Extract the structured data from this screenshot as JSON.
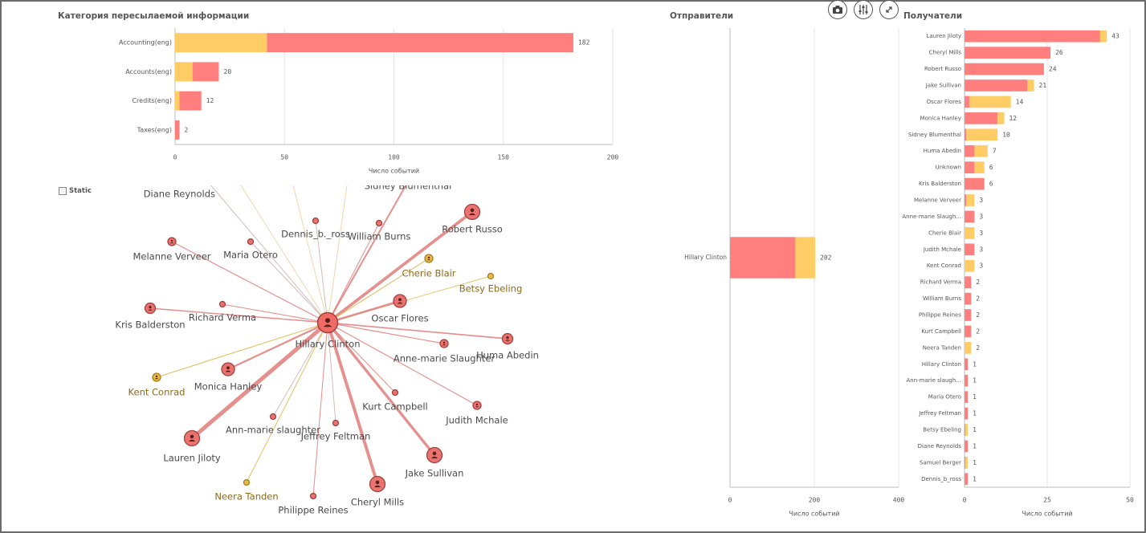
{
  "colors": {
    "red": "#ff7f7f",
    "yellow": "#ffcc66",
    "hub_red": "#f06a66",
    "dark_red": "#b04a48",
    "yellow_dark": "#c89a2a",
    "grid": "#e6e6e6",
    "axis": "#bdbdbd",
    "label": "#555555",
    "node_label": "#4a4a4a",
    "node_label_yellow": "#8a6a1a"
  },
  "toolbar": {
    "camera_icon": "camera-icon",
    "settings_icon": "sliders-icon",
    "expand_icon": "expand-icon"
  },
  "static_toggle": {
    "label": "Static"
  },
  "chart_data": [
    {
      "type": "bar",
      "orientation": "horizontal",
      "stacked": true,
      "title": "Категория пересылаемой информации",
      "xlabel": "Число событий",
      "xlim": [
        0,
        200
      ],
      "xticks": [
        0,
        50,
        100,
        150,
        200
      ],
      "grid": true,
      "categories": [
        "Accounting(eng)",
        "Accounts(eng)",
        "Credits(eng)",
        "Taxes(eng)"
      ],
      "series": [
        {
          "color": "#ffcc66",
          "values": [
            42,
            8,
            2,
            0
          ]
        },
        {
          "color": "#ff7f7f",
          "values": [
            140,
            12,
            10,
            2
          ]
        }
      ],
      "totals": [
        182,
        20,
        12,
        2
      ]
    },
    {
      "type": "bar",
      "orientation": "horizontal",
      "stacked": true,
      "title": "Отправители",
      "xlabel": "Число событий",
      "xlim": [
        0,
        400
      ],
      "xticks": [
        0,
        200,
        400
      ],
      "grid": true,
      "categories": [
        "Hillary Clinton"
      ],
      "series": [
        {
          "color": "#ff7f7f",
          "values": [
            155
          ]
        },
        {
          "color": "#ffcc66",
          "values": [
            47
          ]
        }
      ],
      "totals": [
        202
      ]
    },
    {
      "type": "bar",
      "orientation": "horizontal",
      "stacked": true,
      "title": "Получатели",
      "xlabel": "Число событий",
      "xlim": [
        0,
        50
      ],
      "xticks": [
        0,
        25,
        50
      ],
      "grid": true,
      "categories": [
        "Lauren Jiloty",
        "Cheryl Mills",
        "Robert Russo",
        "Jake Sullivan",
        "Oscar Flores",
        "Monica Hanley",
        "Sidney Blumenthal",
        "Huma Abedin",
        "Unknown",
        "Kris Balderston",
        "Melanne Verveer",
        "Anne-marie Slaugh...",
        "Cherie Blair",
        "Judith Mchale",
        "Kent Conrad",
        "Richard Verma",
        "William Burns",
        "Philippe Reines",
        "Kurt Campbell",
        "Neera Tanden",
        "Hillary Clinton",
        "Ann-marie slaugh...",
        "Maria Otero",
        "Jeffrey Feltman",
        "Betsy Ebeling",
        "Diane Reynolds",
        "Samuel Berger",
        "Dennis_b_ross"
      ],
      "series": [
        {
          "color": "#ff7f7f",
          "values": [
            41,
            26,
            24,
            19,
            1.5,
            10,
            0.5,
            3,
            3,
            6,
            0.5,
            3,
            0,
            3,
            0,
            2,
            2,
            2,
            2,
            0,
            1,
            1,
            1,
            1,
            0.3,
            1,
            0.3,
            1
          ]
        },
        {
          "color": "#ffcc66",
          "values": [
            2,
            0,
            0,
            2,
            12.5,
            2,
            9.5,
            4,
            3,
            0,
            2.5,
            0,
            3,
            0,
            3,
            0,
            0,
            0,
            0,
            2,
            0,
            0,
            0,
            0,
            0.7,
            0,
            0.7,
            0
          ]
        }
      ],
      "totals": [
        43,
        26,
        24,
        21,
        14,
        12,
        10,
        7,
        6,
        6,
        3,
        3,
        3,
        3,
        3,
        2,
        2,
        2,
        2,
        2,
        1,
        1,
        1,
        1,
        1,
        1,
        1,
        1
      ]
    }
  ],
  "network": {
    "hub": {
      "label": "Hillary Clinton"
    },
    "nodes": [
      {
        "label": "Diane Reynolds",
        "color": "red",
        "weight": 1
      },
      {
        "label": "Sidney Blumenthal",
        "color": "red",
        "weight": 10
      },
      {
        "label": "Dennis_b._ross",
        "color": "red",
        "weight": 1
      },
      {
        "label": "William Burns",
        "color": "red",
        "weight": 2
      },
      {
        "label": "Robert Russo",
        "color": "red",
        "weight": 24
      },
      {
        "label": "Melanne Verveer",
        "color": "red",
        "weight": 3
      },
      {
        "label": "Maria Otero",
        "color": "red",
        "weight": 1
      },
      {
        "label": "Cherie Blair",
        "color": "yellow",
        "weight": 3
      },
      {
        "label": "Betsy Ebeling",
        "color": "yellow",
        "weight": 1
      },
      {
        "label": "Kris Balderston",
        "color": "red",
        "weight": 6
      },
      {
        "label": "Richard Verma",
        "color": "red",
        "weight": 2
      },
      {
        "label": "Oscar Flores",
        "color": "red",
        "weight": 14
      },
      {
        "label": "Huma Abedin",
        "color": "red",
        "weight": 7
      },
      {
        "label": "Anne-marie Slaughter",
        "color": "red",
        "weight": 3
      },
      {
        "label": "Kent Conrad",
        "color": "yellow",
        "weight": 3
      },
      {
        "label": "Monica Hanley",
        "color": "red",
        "weight": 12
      },
      {
        "label": "Kurt Campbell",
        "color": "red",
        "weight": 2
      },
      {
        "label": "Judith Mchale",
        "color": "red",
        "weight": 3
      },
      {
        "label": "Ann-marie slaughter",
        "color": "red",
        "weight": 1
      },
      {
        "label": "Jeffrey Feltman",
        "color": "red",
        "weight": 1
      },
      {
        "label": "Lauren Jiloty",
        "color": "red",
        "weight": 43
      },
      {
        "label": "Jake Sullivan",
        "color": "red",
        "weight": 21
      },
      {
        "label": "Neera Tanden",
        "color": "yellow",
        "weight": 2
      },
      {
        "label": "Philippe Reines",
        "color": "red",
        "weight": 2
      },
      {
        "label": "Cheryl Mills",
        "color": "red",
        "weight": 26
      }
    ]
  }
}
